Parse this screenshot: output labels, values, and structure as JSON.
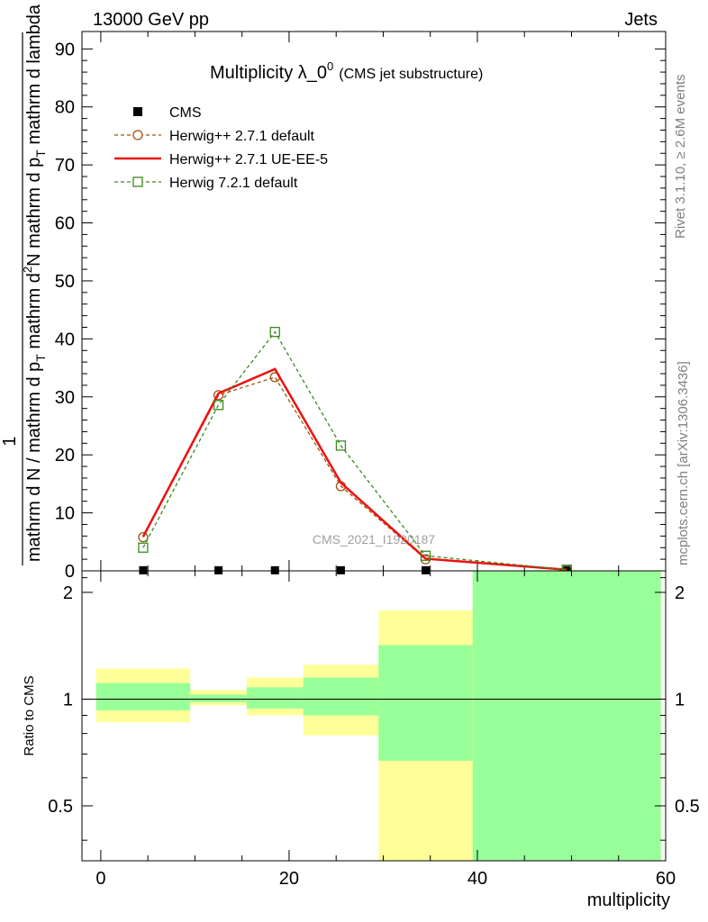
{
  "header": {
    "left": "13000 GeV pp",
    "right": "Jets"
  },
  "side": {
    "rivet": "Rivet 3.1.10, ≥ 2.6M events",
    "mcplots": "mcplots.cern.ch [arXiv:1306.3436]"
  },
  "watermark": "CMS_2021_I1920187",
  "chart_data": [
    {
      "type": "line",
      "title": "Multiplicity λ_0",
      "title_sup": "0",
      "subtitle": "(CMS jet substructure)",
      "ylabel": {
        "numerator_one": "1",
        "denominator": "mathrm d N / mathrm d p",
        "denominator_sub": "T",
        "numerator": "mathrm d",
        "numerator_sup": "2",
        "numerator_n": "N",
        "numerator_rest": "mathrm d p",
        "numerator_rest_sub": "T",
        "numerator_tail": "mathrm d lambda"
      },
      "xlim": [
        -2,
        60
      ],
      "ylim": [
        0,
        93
      ],
      "y_ticks": [
        "0",
        "10",
        "20",
        "30",
        "40",
        "50",
        "60",
        "70",
        "80",
        "90"
      ],
      "series": [
        {
          "name": "CMS",
          "color": "#000000",
          "marker": "square-filled",
          "x": [
            4.5,
            12.5,
            18.5,
            25.5,
            34.5,
            49.5
          ],
          "y": [
            0.1,
            0.1,
            0.1,
            0.1,
            0.1,
            0.1
          ]
        },
        {
          "name": "Herwig++ 2.7.1 default",
          "color": "#a0520f",
          "marker": "circle-open",
          "dash": "dashed",
          "x": [
            4.5,
            12.5,
            18.5,
            25.5,
            34.5,
            49.5
          ],
          "y": [
            5.8,
            30.3,
            33.4,
            14.6,
            2.0,
            0.2
          ]
        },
        {
          "name": "Herwig++ 2.7.1 UE-EE-5",
          "color": "#ee1111",
          "marker": "none",
          "dash": "solid",
          "x": [
            4.5,
            12.5,
            18.5,
            25.5,
            34.5,
            49.5
          ],
          "y": [
            5.9,
            30.6,
            34.8,
            15.2,
            2.1,
            0.2
          ]
        },
        {
          "name": "Herwig 7.2.1 default",
          "color": "#3a8a1c",
          "marker": "square-open",
          "dash": "dashed",
          "x": [
            4.5,
            12.5,
            18.5,
            25.5,
            34.5,
            49.5
          ],
          "y": [
            4.0,
            28.6,
            41.2,
            21.6,
            2.6,
            0.2
          ]
        }
      ]
    },
    {
      "type": "area",
      "ylabel": "Ratio to CMS",
      "xlabel": "multiplicity",
      "xlim": [
        -2,
        60
      ],
      "ylim": [
        0.35,
        2.3
      ],
      "x_ticks": [
        "0",
        "20",
        "40",
        "60"
      ],
      "y_ticks": [
        "0.5",
        "1",
        "2"
      ],
      "reference_line": 1,
      "band_colors": {
        "outer": "#ffff99",
        "inner": "#99ff99"
      },
      "bins": [
        {
          "x": [
            -0.5,
            9.5
          ],
          "outer": [
            0.86,
            1.22
          ],
          "inner": [
            0.93,
            1.11
          ]
        },
        {
          "x": [
            9.5,
            15.5
          ],
          "outer": [
            0.96,
            1.06
          ],
          "inner": [
            0.98,
            1.03
          ]
        },
        {
          "x": [
            15.5,
            21.5
          ],
          "outer": [
            0.9,
            1.15
          ],
          "inner": [
            0.94,
            1.08
          ]
        },
        {
          "x": [
            21.5,
            29.5
          ],
          "outer": [
            0.79,
            1.25
          ],
          "inner": [
            0.9,
            1.15
          ]
        },
        {
          "x": [
            29.5,
            39.5
          ],
          "outer": [
            0.35,
            1.78
          ],
          "inner": [
            0.67,
            1.42
          ]
        },
        {
          "x": [
            39.5,
            59.5
          ],
          "outer": [
            0.35,
            2.3
          ],
          "inner": [
            0.35,
            2.3
          ]
        }
      ]
    }
  ]
}
